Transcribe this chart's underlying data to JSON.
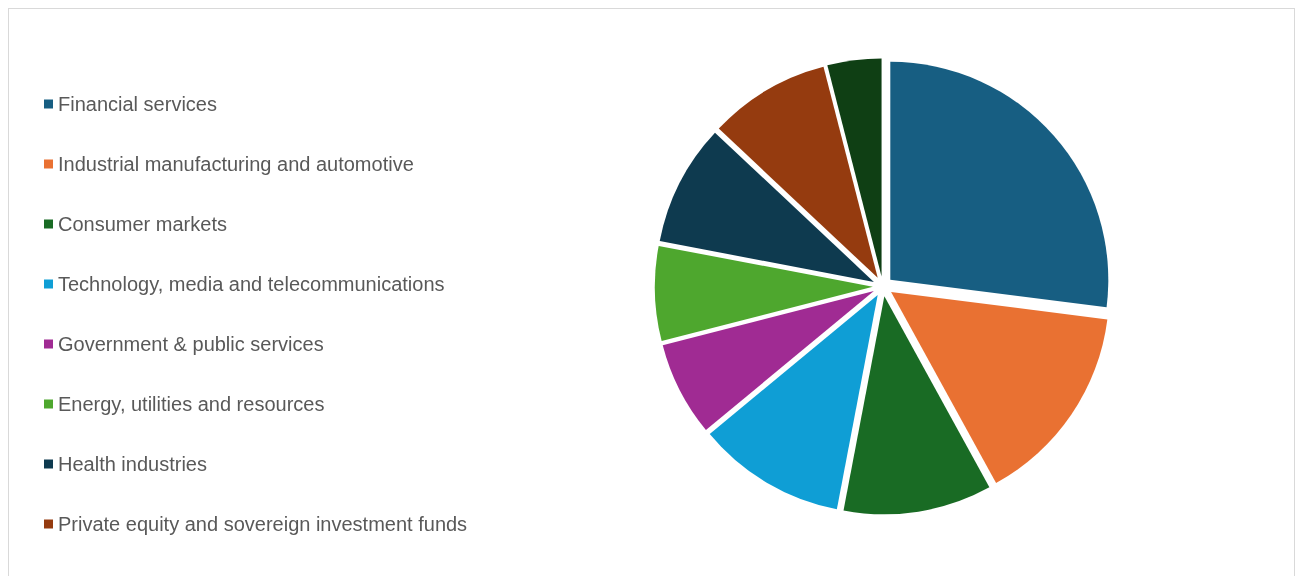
{
  "chart_data": {
    "type": "pie",
    "categories": [
      "Financial services",
      "Industrial manufacturing and automotive",
      "Consumer markets",
      "Technology, media and telecommunications",
      "Government & public services",
      "Energy, utilities and resources",
      "Health industries",
      "Private equity and sovereign investment funds",
      null
    ],
    "values": [
      27,
      15,
      11,
      11,
      7,
      7,
      9,
      9,
      4
    ],
    "colors": [
      "#175e82",
      "#e97132",
      "#196b24",
      "#0f9ed5",
      "#a02b93",
      "#4ea72e",
      "#0e3a4f",
      "#953b0f",
      "#0f3f14"
    ],
    "legend": "left"
  }
}
